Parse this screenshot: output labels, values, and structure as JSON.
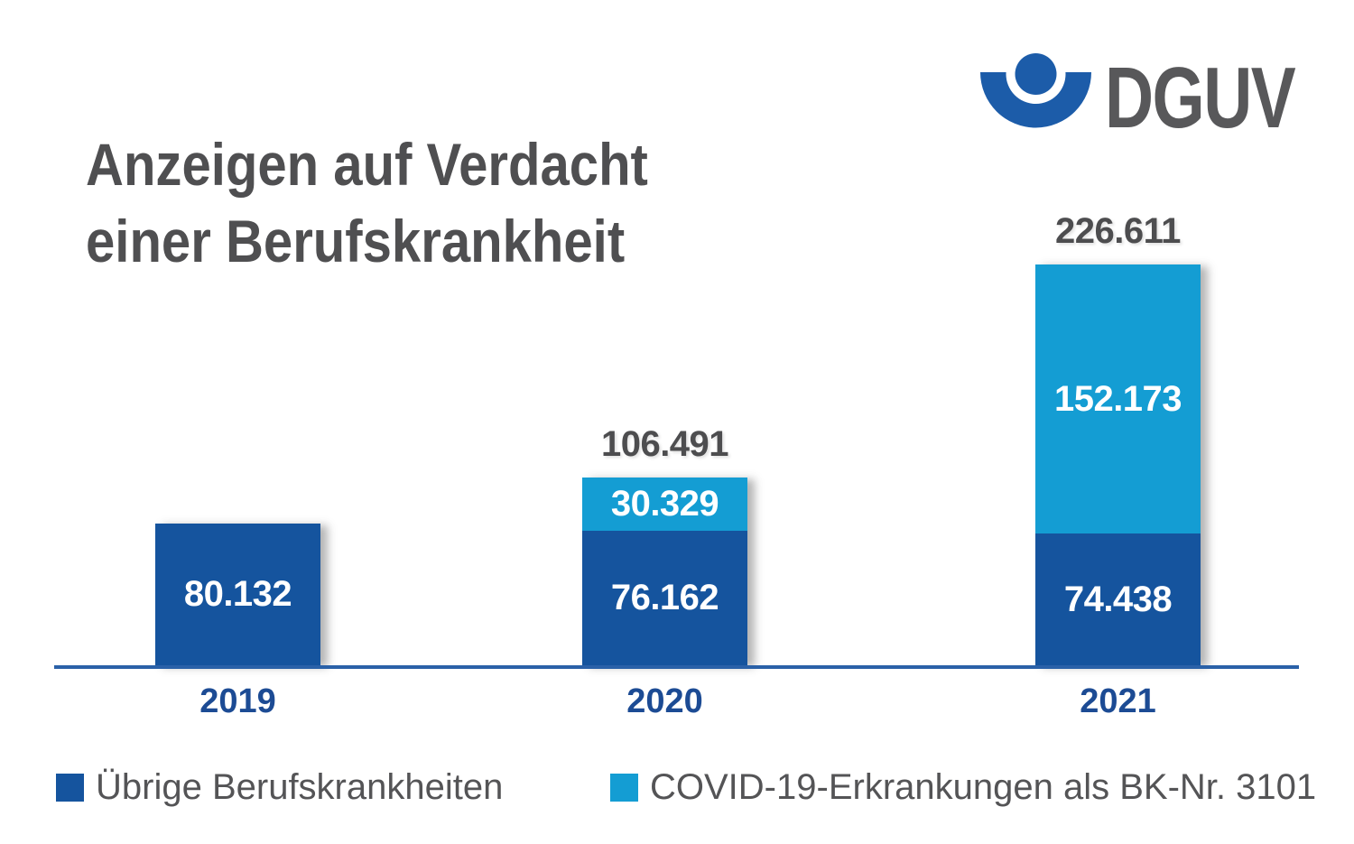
{
  "header": {
    "title_line1": "Anzeigen auf Verdacht",
    "title_line2": "einer Berufskrankheit",
    "logo_text": "DGUV"
  },
  "colors": {
    "dark_blue": "#15549E",
    "light_blue": "#149DD3",
    "logo_blue": "#1C5CA9",
    "axis_blue": "#2A61A8",
    "year_label_blue": "#1C4B94",
    "title_gray": "#4F4F51",
    "total_label_gray": "#4D4D4F",
    "legend_text_gray": "#545456",
    "logo_text_gray": "#58585A"
  },
  "chart_data": {
    "type": "bar",
    "stacked": true,
    "title": "Anzeigen auf Verdacht einer Berufskrankheit",
    "categories": [
      "2019",
      "2020",
      "2021"
    ],
    "series": [
      {
        "name": "Übrige Berufskrankheiten",
        "color_key": "dark_blue",
        "values": [
          80132,
          76162,
          74438
        ],
        "value_labels": [
          "80.132",
          "76.162",
          "74.438"
        ]
      },
      {
        "name": "COVID-19-Erkrankungen als BK-Nr. 3101",
        "color_key": "light_blue",
        "values": [
          0,
          30329,
          152173
        ],
        "value_labels": [
          "",
          "30.329",
          "152.173"
        ]
      }
    ],
    "totals": [
      80132,
      106491,
      226611
    ],
    "total_labels": [
      "",
      "106.491",
      "226.611"
    ],
    "xlabel": "",
    "ylabel": "",
    "ylim": [
      0,
      235000
    ],
    "grid": false,
    "legend_position": "bottom"
  },
  "legend": {
    "items": [
      {
        "label": "Übrige Berufskrankheiten",
        "color_key": "dark_blue"
      },
      {
        "label": "COVID-19-Erkrankungen als BK-Nr. 3101",
        "color_key": "light_blue"
      }
    ]
  }
}
